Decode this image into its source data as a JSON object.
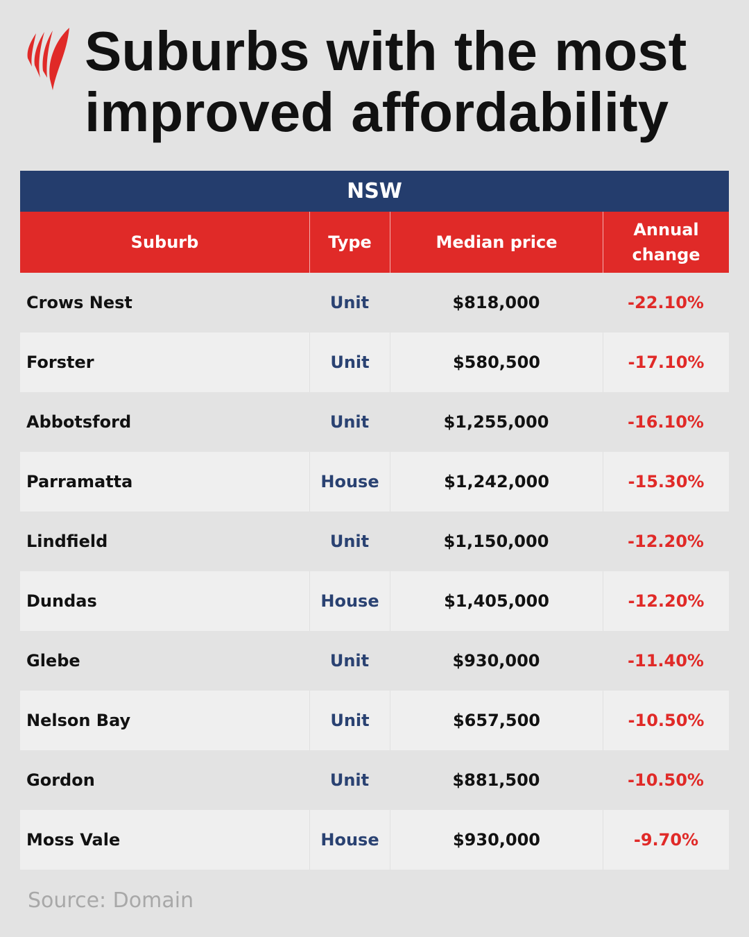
{
  "title": "Suburbs with the most improved affordability",
  "logo": "SBS",
  "colors": {
    "navy": "#243d6d",
    "red": "#e02a28"
  },
  "chart_data": {
    "type": "table",
    "group": "NSW",
    "columns": [
      "Suburb",
      "Type",
      "Median price",
      "Annual change"
    ],
    "rows": [
      [
        "Crows Nest",
        "Unit",
        "$818,000",
        "-22.10%"
      ],
      [
        "Forster",
        "Unit",
        "$580,500",
        "-17.10%"
      ],
      [
        "Abbotsford",
        "Unit",
        "$1,255,000",
        "-16.10%"
      ],
      [
        "Parramatta",
        "House",
        "$1,242,000",
        "-15.30%"
      ],
      [
        "Lindfield",
        "Unit",
        "$1,150,000",
        "-12.20%"
      ],
      [
        "Dundas",
        "House",
        "$1,405,000",
        "-12.20%"
      ],
      [
        "Glebe",
        "Unit",
        "$930,000",
        "-11.40%"
      ],
      [
        "Nelson Bay",
        "Unit",
        "$657,500",
        "-10.50%"
      ],
      [
        "Gordon",
        "Unit",
        "$881,500",
        "-10.50%"
      ],
      [
        "Moss Vale",
        "House",
        "$930,000",
        "-9.70%"
      ]
    ]
  },
  "source": "Source: Domain"
}
